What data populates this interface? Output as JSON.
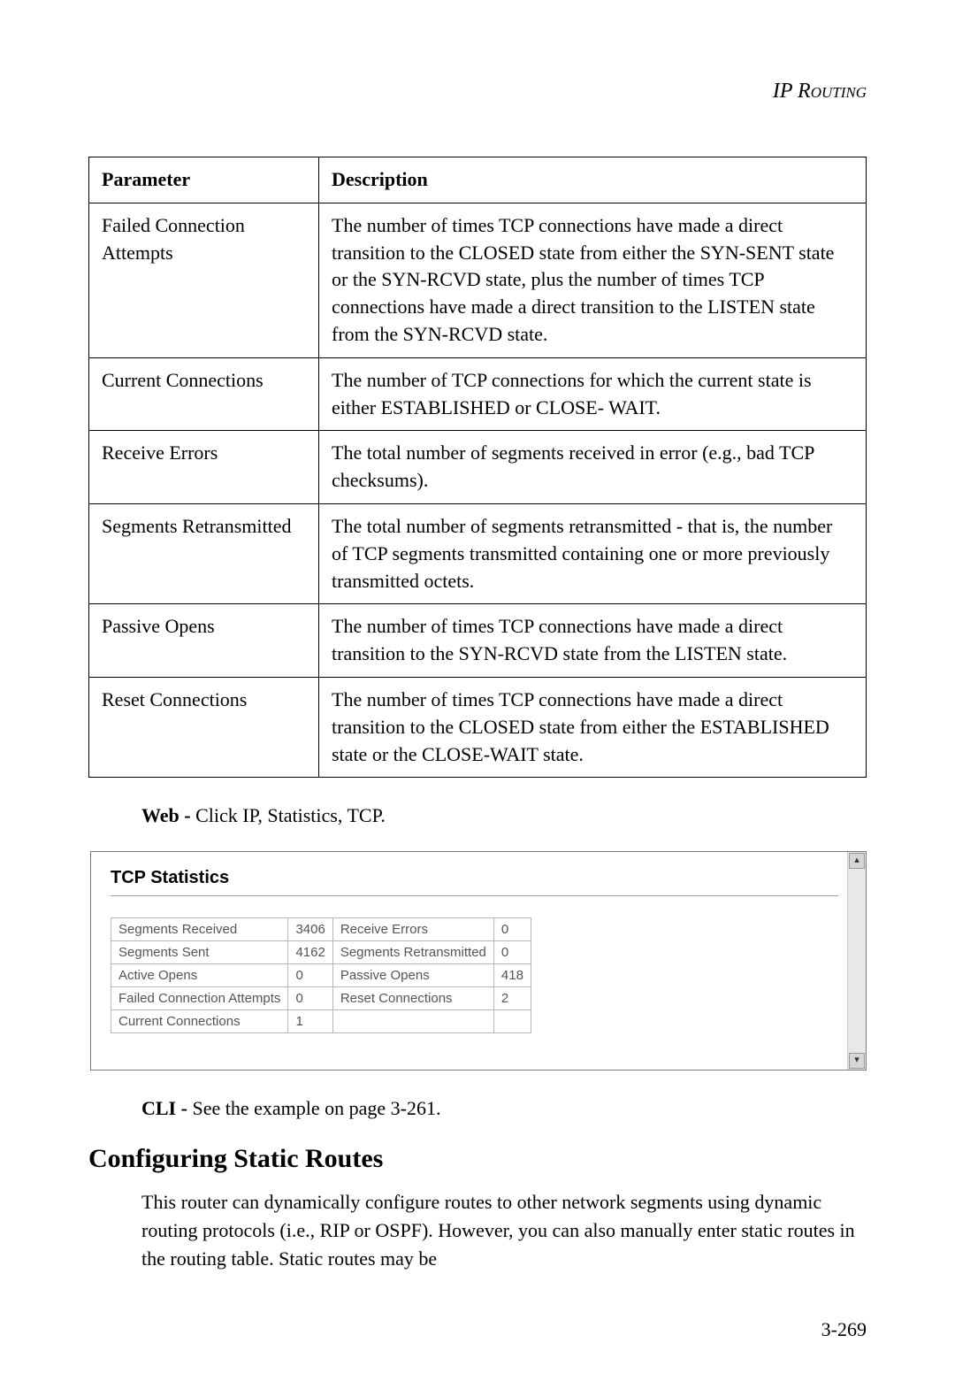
{
  "running_head": "IP Routing",
  "param_table": {
    "headers": {
      "param": "Parameter",
      "desc": "Description"
    },
    "rows": [
      {
        "param": "Failed Connection Attempts",
        "desc": "The number of times TCP connections have made a direct transition to the CLOSED state from either the SYN-SENT state or the SYN-RCVD state, plus the number of times TCP connections have made a direct transition to the LISTEN state from the SYN-RCVD state."
      },
      {
        "param": "Current Connections",
        "desc": "The number of TCP connections for which the current state is either ESTABLISHED or CLOSE- WAIT."
      },
      {
        "param": "Receive Errors",
        "desc": "The total number of segments received in error (e.g., bad TCP checksums)."
      },
      {
        "param": "Segments Retransmitted",
        "desc": "The total number of segments retransmitted - that is, the number of TCP segments transmitted containing one or more previously transmitted octets."
      },
      {
        "param": "Passive Opens",
        "desc": "The number of times TCP connections have made a direct transition to the SYN-RCVD state from the LISTEN state."
      },
      {
        "param": "Reset Connections",
        "desc": "The number of times TCP connections have made a direct transition to the CLOSED state from either the ESTABLISHED state or the CLOSE-WAIT state."
      }
    ]
  },
  "web_line": {
    "label": "Web - ",
    "text": "Click IP, Statistics, TCP."
  },
  "tcp_stats": {
    "title": "TCP Statistics",
    "rows": [
      {
        "l_label": "Segments Received",
        "l_val": "3406",
        "r_label": "Receive Errors",
        "r_val": "0"
      },
      {
        "l_label": "Segments Sent",
        "l_val": "4162",
        "r_label": "Segments Retransmitted",
        "r_val": "0"
      },
      {
        "l_label": "Active Opens",
        "l_val": "0",
        "r_label": "Passive Opens",
        "r_val": "418"
      },
      {
        "l_label": "Failed Connection Attempts",
        "l_val": "0",
        "r_label": "Reset Connections",
        "r_val": "2"
      },
      {
        "l_label": "Current Connections",
        "l_val": "1",
        "r_label": "",
        "r_val": ""
      }
    ],
    "scroll_up": "▴",
    "scroll_down": "▾"
  },
  "cli_line": {
    "label": "CLI - ",
    "text": "See the example on page 3-261."
  },
  "section_heading": "Configuring Static Routes",
  "body_para": "This router can dynamically configure routes to other network segments using dynamic routing protocols (i.e., RIP or OSPF). However, you can also manually enter static routes in the routing table. Static routes may be",
  "page_number": "3-269",
  "colors": {
    "text": "#000000",
    "border": "#000000",
    "screenshot_border": "#7a7a7a",
    "stats_border": "#b8b8b8",
    "stats_text": "#555555",
    "scrollbar_bg": "#e8e8e8"
  }
}
